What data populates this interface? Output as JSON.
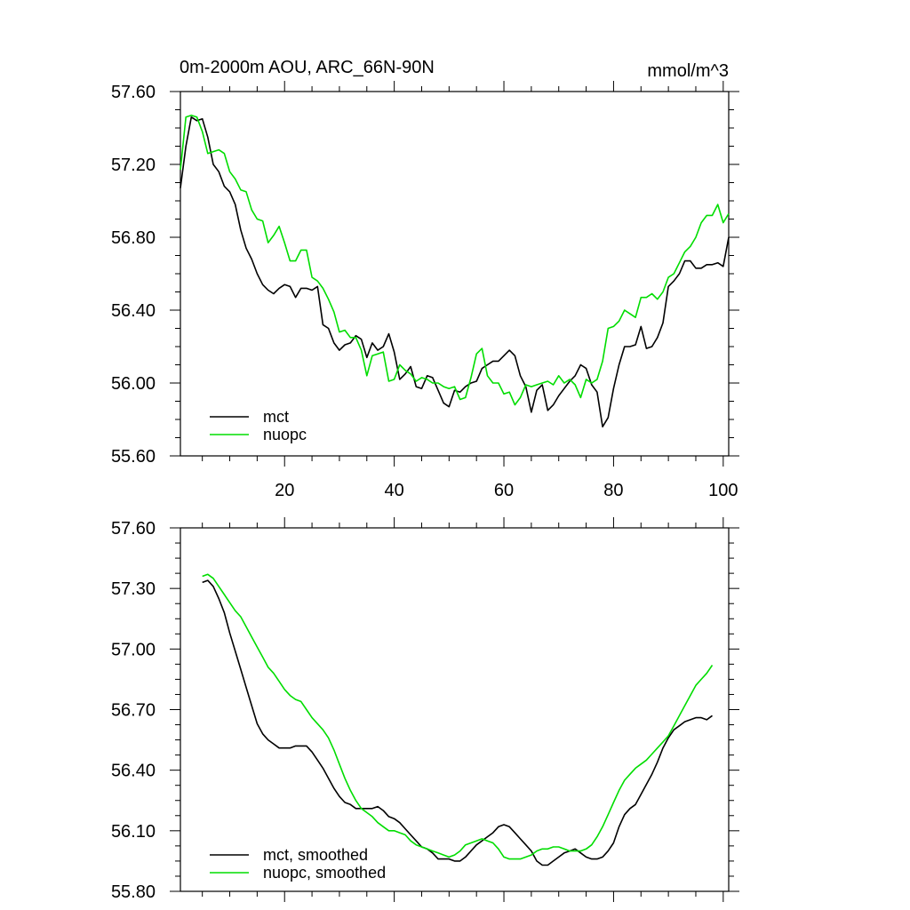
{
  "chart_data": [
    {
      "type": "line",
      "title": "0m-2000m AOU, ARC_66N-90N",
      "units": "mmol/m^3",
      "xlabel": "",
      "ylabel": "",
      "xlim": [
        1,
        101
      ],
      "ylim": [
        55.6,
        57.6
      ],
      "yticks": [
        55.6,
        56.0,
        56.4,
        56.8,
        57.2,
        57.6
      ],
      "ytick_labels": [
        "55.60",
        "56.00",
        "56.40",
        "56.80",
        "57.20",
        "57.60"
      ],
      "xticks": [
        20,
        40,
        60,
        80,
        100
      ],
      "xtick_labels": [
        "20",
        "40",
        "60",
        "80",
        "100"
      ],
      "legend_position": "bottom-left",
      "series": [
        {
          "name": "mct",
          "color": "#000000",
          "x": [
            1,
            2,
            3,
            4,
            5,
            6,
            7,
            8,
            9,
            10,
            11,
            12,
            13,
            14,
            15,
            16,
            17,
            18,
            19,
            20,
            21,
            22,
            23,
            24,
            25,
            26,
            27,
            28,
            29,
            30,
            31,
            32,
            33,
            34,
            35,
            36,
            37,
            38,
            39,
            40,
            41,
            42,
            43,
            44,
            45,
            46,
            47,
            48,
            49,
            50,
            51,
            52,
            53,
            54,
            55,
            56,
            57,
            58,
            59,
            60,
            61,
            62,
            63,
            64,
            65,
            66,
            67,
            68,
            69,
            70,
            71,
            72,
            73,
            74,
            75,
            76,
            77,
            78,
            79,
            80,
            81,
            82,
            83,
            84,
            85,
            86,
            87,
            88,
            89,
            90,
            91,
            92,
            93,
            94,
            95,
            96,
            97,
            98,
            99,
            100,
            101
          ],
          "y": [
            57.07,
            57.3,
            57.46,
            57.44,
            57.45,
            57.35,
            57.2,
            57.16,
            57.08,
            57.05,
            56.98,
            56.84,
            56.74,
            56.68,
            56.6,
            56.54,
            56.51,
            56.49,
            56.52,
            56.54,
            56.53,
            56.47,
            56.52,
            56.52,
            56.51,
            56.53,
            56.32,
            56.3,
            56.22,
            56.18,
            56.21,
            56.22,
            56.26,
            56.24,
            56.14,
            56.22,
            56.18,
            56.2,
            56.27,
            56.17,
            56.02,
            56.05,
            56.09,
            55.98,
            55.97,
            56.04,
            56.03,
            55.96,
            55.89,
            55.87,
            55.96,
            55.95,
            55.98,
            56.0,
            56.01,
            56.08,
            56.1,
            56.12,
            56.12,
            56.15,
            56.18,
            56.15,
            56.04,
            55.98,
            55.84,
            55.96,
            55.99,
            55.85,
            55.88,
            55.93,
            55.97,
            56.01,
            56.04,
            56.1,
            56.08,
            55.99,
            55.95,
            55.76,
            55.81,
            55.97,
            56.1,
            56.2,
            56.2,
            56.21,
            56.31,
            56.19,
            56.2,
            56.25,
            56.33,
            56.53,
            56.56,
            56.6,
            56.67,
            56.67,
            56.63,
            56.63,
            56.65,
            56.65,
            56.66,
            56.64,
            56.8
          ]
        },
        {
          "name": "nuopc",
          "color": "#00dd00",
          "x": [
            1,
            2,
            3,
            4,
            5,
            6,
            7,
            8,
            9,
            10,
            11,
            12,
            13,
            14,
            15,
            16,
            17,
            18,
            19,
            20,
            21,
            22,
            23,
            24,
            25,
            26,
            27,
            28,
            29,
            30,
            31,
            32,
            33,
            34,
            35,
            36,
            37,
            38,
            39,
            40,
            41,
            42,
            43,
            44,
            45,
            46,
            47,
            48,
            49,
            50,
            51,
            52,
            53,
            54,
            55,
            56,
            57,
            58,
            59,
            60,
            61,
            62,
            63,
            64,
            65,
            66,
            67,
            68,
            69,
            70,
            71,
            72,
            73,
            74,
            75,
            76,
            77,
            78,
            79,
            80,
            81,
            82,
            83,
            84,
            85,
            86,
            87,
            88,
            89,
            90,
            91,
            92,
            93,
            94,
            95,
            96,
            97,
            98,
            99,
            100,
            101
          ],
          "y": [
            57.17,
            57.46,
            57.47,
            57.46,
            57.38,
            57.26,
            57.27,
            57.28,
            57.26,
            57.16,
            57.12,
            57.06,
            57.05,
            56.95,
            56.9,
            56.89,
            56.77,
            56.81,
            56.86,
            56.77,
            56.67,
            56.67,
            56.73,
            56.73,
            56.58,
            56.56,
            56.52,
            56.46,
            56.39,
            56.28,
            56.29,
            56.25,
            56.25,
            56.18,
            56.04,
            56.15,
            56.16,
            56.17,
            56.01,
            56.02,
            56.1,
            56.07,
            56.05,
            56.01,
            56.03,
            56.02,
            56.0,
            56.0,
            55.98,
            55.97,
            55.98,
            55.91,
            55.92,
            56.03,
            56.16,
            56.19,
            56.04,
            56.0,
            56.0,
            55.94,
            55.95,
            55.88,
            55.92,
            55.99,
            55.98,
            55.99,
            56.0,
            56.01,
            55.99,
            56.04,
            56.0,
            56.02,
            55.99,
            55.92,
            56.02,
            56.0,
            56.02,
            56.12,
            56.3,
            56.31,
            56.34,
            56.4,
            56.38,
            56.36,
            56.47,
            56.47,
            56.49,
            56.46,
            56.5,
            56.58,
            56.6,
            56.66,
            56.72,
            56.75,
            56.8,
            56.88,
            56.92,
            56.92,
            56.98,
            56.88,
            56.93
          ]
        }
      ]
    },
    {
      "type": "line",
      "title": "",
      "xlabel": "",
      "ylabel": "",
      "xlim": [
        1,
        101
      ],
      "ylim": [
        55.8,
        57.6
      ],
      "yticks": [
        55.8,
        56.1,
        56.4,
        56.7,
        57.0,
        57.3,
        57.6
      ],
      "ytick_labels": [
        "55.80",
        "56.10",
        "56.40",
        "56.70",
        "57.00",
        "57.30",
        "57.60"
      ],
      "xticks": [
        20,
        40,
        60,
        80,
        100
      ],
      "xtick_labels": [],
      "legend_position": "bottom-left",
      "series": [
        {
          "name": "mct, smoothed",
          "color": "#000000",
          "x": [
            5,
            6,
            7,
            8,
            9,
            10,
            11,
            12,
            13,
            14,
            15,
            16,
            17,
            18,
            19,
            20,
            21,
            22,
            23,
            24,
            25,
            26,
            27,
            28,
            29,
            30,
            31,
            32,
            33,
            34,
            35,
            36,
            37,
            38,
            39,
            40,
            41,
            42,
            43,
            44,
            45,
            46,
            47,
            48,
            49,
            50,
            51,
            52,
            53,
            54,
            55,
            56,
            57,
            58,
            59,
            60,
            61,
            62,
            63,
            64,
            65,
            66,
            67,
            68,
            69,
            70,
            71,
            72,
            73,
            74,
            75,
            76,
            77,
            78,
            79,
            80,
            81,
            82,
            83,
            84,
            85,
            86,
            87,
            88,
            89,
            90,
            91,
            92,
            93,
            94,
            95,
            96,
            97,
            98
          ],
          "y": [
            57.33,
            57.34,
            57.31,
            57.25,
            57.18,
            57.08,
            56.99,
            56.9,
            56.81,
            56.72,
            56.63,
            56.58,
            56.55,
            56.53,
            56.51,
            56.51,
            56.51,
            56.52,
            56.52,
            56.52,
            56.49,
            56.45,
            56.41,
            56.36,
            56.31,
            56.27,
            56.24,
            56.23,
            56.21,
            56.21,
            56.21,
            56.21,
            56.22,
            56.2,
            56.17,
            56.16,
            56.14,
            56.11,
            56.08,
            56.05,
            56.02,
            56.01,
            55.99,
            55.96,
            55.96,
            55.96,
            55.95,
            55.95,
            55.97,
            56.0,
            56.03,
            56.05,
            56.07,
            56.09,
            56.12,
            56.13,
            56.12,
            56.09,
            56.06,
            56.03,
            56.0,
            55.95,
            55.93,
            55.93,
            55.95,
            55.97,
            55.99,
            56.0,
            56.01,
            55.99,
            55.97,
            55.96,
            55.96,
            55.97,
            56.0,
            56.04,
            56.12,
            56.18,
            56.21,
            56.23,
            56.28,
            56.33,
            56.38,
            56.44,
            56.51,
            56.56,
            56.6,
            56.62,
            56.64,
            56.65,
            56.66,
            56.66,
            56.65,
            56.67
          ]
        },
        {
          "name": "nuopc, smoothed",
          "color": "#00dd00",
          "x": [
            5,
            6,
            7,
            8,
            9,
            10,
            11,
            12,
            13,
            14,
            15,
            16,
            17,
            18,
            19,
            20,
            21,
            22,
            23,
            24,
            25,
            26,
            27,
            28,
            29,
            30,
            31,
            32,
            33,
            34,
            35,
            36,
            37,
            38,
            39,
            40,
            41,
            42,
            43,
            44,
            45,
            46,
            47,
            48,
            49,
            50,
            51,
            52,
            53,
            54,
            55,
            56,
            57,
            58,
            59,
            60,
            61,
            62,
            63,
            64,
            65,
            66,
            67,
            68,
            69,
            70,
            71,
            72,
            73,
            74,
            75,
            76,
            77,
            78,
            79,
            80,
            81,
            82,
            83,
            84,
            85,
            86,
            87,
            88,
            89,
            90,
            91,
            92,
            93,
            94,
            95,
            96,
            97,
            98
          ],
          "y": [
            57.36,
            57.37,
            57.35,
            57.31,
            57.27,
            57.23,
            57.19,
            57.16,
            57.11,
            57.06,
            57.01,
            56.96,
            56.91,
            56.88,
            56.84,
            56.8,
            56.77,
            56.75,
            56.74,
            56.7,
            56.66,
            56.63,
            56.6,
            56.56,
            56.5,
            56.43,
            56.36,
            56.3,
            56.25,
            56.21,
            56.19,
            56.17,
            56.14,
            56.12,
            56.1,
            56.1,
            56.09,
            56.08,
            56.05,
            56.03,
            56.02,
            56.01,
            56.0,
            55.99,
            55.98,
            55.97,
            55.98,
            56.0,
            56.03,
            56.04,
            56.05,
            56.06,
            56.05,
            56.04,
            56.01,
            55.97,
            55.96,
            55.96,
            55.96,
            55.97,
            55.98,
            56.0,
            56.01,
            56.01,
            56.02,
            56.02,
            56.01,
            56.0,
            56.0,
            56.0,
            56.01,
            56.03,
            56.07,
            56.12,
            56.18,
            56.24,
            56.3,
            56.35,
            56.38,
            56.41,
            56.43,
            56.45,
            56.48,
            56.51,
            56.54,
            56.57,
            56.62,
            56.67,
            56.72,
            56.77,
            56.82,
            56.85,
            56.88,
            56.92
          ]
        }
      ]
    }
  ]
}
